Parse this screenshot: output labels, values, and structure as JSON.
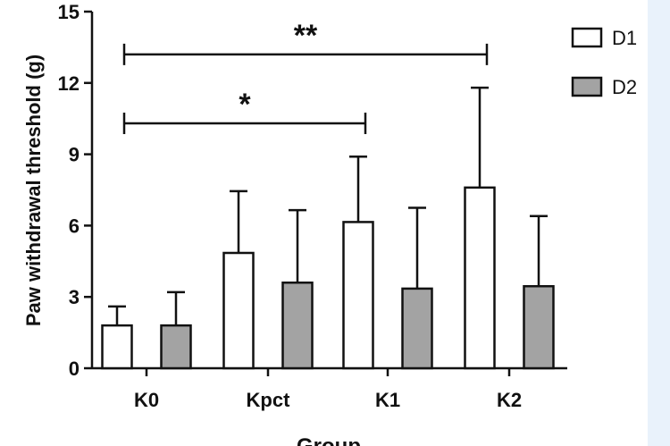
{
  "chart_data": {
    "type": "bar",
    "title": "",
    "xlabel": "Group",
    "ylabel": "Paw withdrawal threshold  (g)",
    "ylim": [
      0,
      15
    ],
    "yticks": [
      0,
      3,
      6,
      9,
      12,
      15
    ],
    "categories": [
      "K0",
      "Kpct",
      "K1",
      "K2"
    ],
    "series": [
      {
        "name": "D1",
        "values": [
          1.8,
          4.85,
          6.15,
          7.6
        ],
        "errors": [
          0.8,
          2.6,
          2.75,
          4.2
        ],
        "fill": "#ffffff"
      },
      {
        "name": "D2",
        "values": [
          1.8,
          3.6,
          3.35,
          3.45
        ],
        "errors": [
          1.4,
          3.05,
          3.4,
          2.95
        ],
        "fill": "#a3a3a3"
      }
    ],
    "significance": [
      {
        "from": "K0",
        "to": "K1",
        "label": "*",
        "y": 10.3
      },
      {
        "from": "K0",
        "to": "K2",
        "label": "**",
        "y": 13.2
      }
    ],
    "legend": {
      "position": "top-right"
    },
    "grid": false
  }
}
